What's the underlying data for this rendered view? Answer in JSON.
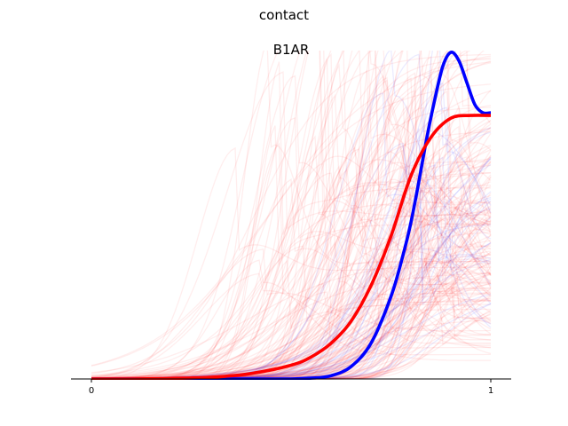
{
  "figure_title": "contact",
  "chart_data": {
    "type": "line",
    "title": "B1AR",
    "xlabel": "",
    "ylabel": "",
    "xlim": [
      0,
      1
    ],
    "ylim": [
      0,
      1.19
    ],
    "x_ticks": [
      {
        "value": 0,
        "label": "0"
      },
      {
        "value": 1,
        "label": "1"
      }
    ],
    "y_axis_visible": false,
    "grid": false,
    "legend": "none",
    "series": [
      {
        "role": "mean",
        "color": "#0000ff",
        "x": [
          0.0,
          0.1,
          0.2,
          0.3,
          0.4,
          0.5,
          0.55,
          0.6,
          0.65,
          0.7,
          0.75,
          0.78,
          0.8,
          0.82,
          0.84,
          0.86,
          0.88,
          0.9,
          0.92,
          0.94,
          0.96,
          0.98,
          1.0
        ],
        "y": [
          0.0,
          0.0,
          0.0,
          0.0,
          0.0,
          0.0,
          0.003,
          0.012,
          0.045,
          0.13,
          0.3,
          0.45,
          0.57,
          0.72,
          0.88,
          1.02,
          1.14,
          1.19,
          1.16,
          1.08,
          1.0,
          0.97,
          0.97
        ]
      },
      {
        "role": "mean",
        "color": "#ff0000",
        "x": [
          0.0,
          0.1,
          0.2,
          0.3,
          0.4,
          0.5,
          0.55,
          0.6,
          0.65,
          0.7,
          0.75,
          0.8,
          0.85,
          0.9,
          0.95,
          1.0
        ],
        "y": [
          0.0,
          0.0,
          0.002,
          0.006,
          0.02,
          0.05,
          0.08,
          0.13,
          0.21,
          0.34,
          0.52,
          0.74,
          0.88,
          0.95,
          0.96,
          0.96
        ]
      }
    ],
    "background_traces": [
      {
        "color": "#ff0000",
        "count": 180
      },
      {
        "color": "#0000ff",
        "count": 30
      }
    ]
  }
}
